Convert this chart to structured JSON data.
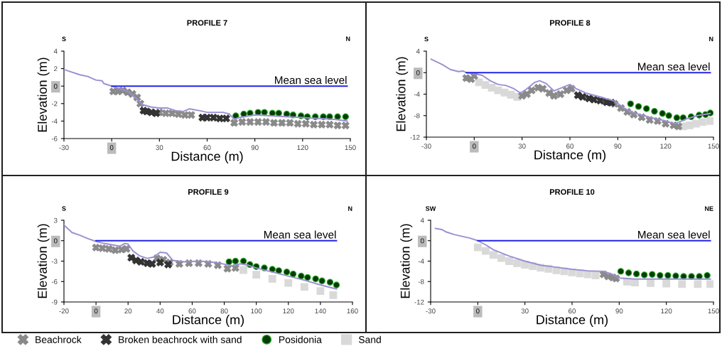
{
  "chart_data": [
    {
      "type": "line",
      "title": "PROFILE 7",
      "xlabel": "Distance (m)",
      "ylabel": "Elevation (m)",
      "xlim": [
        -30,
        150
      ],
      "xticks": [
        -30,
        0,
        30,
        60,
        90,
        120,
        150
      ],
      "ylim": [
        -6,
        4
      ],
      "yticks": [
        -6,
        -4,
        -2,
        0,
        2,
        4
      ],
      "legend": "bottom",
      "annotations": [
        "S",
        "N",
        "Mean sea level"
      ],
      "series": [
        {
          "color": "#9b8fd4",
          "x": [
            -30,
            -20,
            -15,
            -10,
            -6,
            -5,
            0,
            5,
            10,
            13,
            16,
            19,
            25,
            30,
            35,
            40,
            45,
            49,
            55,
            60,
            70,
            74,
            77,
            80,
            90,
            100,
            110,
            120,
            130,
            140,
            148
          ],
          "values": [
            1.9,
            1.3,
            1.1,
            0.7,
            0.6,
            0.3,
            0,
            -0.3,
            -0.6,
            -1.0,
            -1.5,
            -2.1,
            -2.4,
            -2.5,
            -2.5,
            -2.8,
            -2.9,
            -2.6,
            -2.8,
            -3.0,
            -3.0,
            -3.2,
            -3.8,
            -3.6,
            -3.3,
            -3.4,
            -3.5,
            -3.6,
            -3.7,
            -3.8,
            -4.0
          ]
        },
        {
          "color": "#2424e8",
          "x": [
            0,
            148
          ],
          "values": [
            0,
            0
          ]
        },
        {
          "type": "scatter",
          "name": "Beachrock",
          "marker": "cross",
          "color": "#8a8a8a",
          "x": [
            1,
            4,
            7,
            10,
            13,
            16,
            18,
            30,
            34,
            38,
            42,
            46,
            50,
            77,
            82,
            87,
            92,
            97,
            102,
            107,
            112,
            117,
            122,
            127,
            132,
            137,
            142,
            147
          ],
          "values": [
            -0.6,
            -0.6,
            -0.5,
            -0.7,
            -0.9,
            -1.3,
            -2.0,
            -3.0,
            -3.1,
            -3.1,
            -3.2,
            -3.3,
            -3.3,
            -4.2,
            -4.1,
            -4.1,
            -4.1,
            -4.1,
            -4.2,
            -4.2,
            -4.2,
            -4.3,
            -4.3,
            -4.4,
            -4.4,
            -4.4,
            -4.5,
            -4.5
          ]
        },
        {
          "type": "scatter",
          "name": "Broken beachrock with sand",
          "marker": "cross",
          "color": "#333333",
          "x": [
            20,
            22,
            25,
            28,
            57,
            60,
            64,
            68,
            72
          ],
          "values": [
            -2.8,
            -2.9,
            -3.0,
            -3.1,
            -3.6,
            -3.6,
            -3.6,
            -3.7,
            -3.7
          ]
        },
        {
          "type": "scatter",
          "name": "Posidonia",
          "marker": "circle",
          "color": "#0a3a0a",
          "x": [
            78,
            83,
            87,
            92,
            96,
            101,
            105,
            110,
            114,
            119,
            123,
            128,
            133,
            137,
            142,
            147
          ],
          "values": [
            -3.4,
            -3.2,
            -3.1,
            -3.0,
            -3.0,
            -3.1,
            -3.1,
            -3.2,
            -3.3,
            -3.4,
            -3.5,
            -3.5,
            -3.5,
            -3.5,
            -3.5,
            -3.5
          ]
        }
      ]
    },
    {
      "type": "line",
      "title": "PROFILE 8",
      "xlabel": "Distance (m)",
      "ylabel": "Elevation (m)",
      "xlim": [
        -30,
        150
      ],
      "xticks": [
        -30,
        0,
        30,
        60,
        90,
        120,
        150
      ],
      "ylim": [
        -12,
        4
      ],
      "yticks": [
        -12,
        -8,
        -4,
        0,
        4
      ],
      "legend": "bottom",
      "annotations": [
        "S",
        "N",
        "Mean sea level"
      ],
      "series": [
        {
          "type": "scatter",
          "name": "Sand",
          "marker": "square",
          "color": "#d9d9d9",
          "x": [
            3,
            7,
            11,
            15,
            19,
            23,
            27,
            131,
            135,
            139,
            143,
            148
          ],
          "values": [
            -1.8,
            -2.3,
            -2.8,
            -3.3,
            -3.7,
            -4.1,
            -4.5,
            -10.0,
            -9.8,
            -9.5,
            -9.2,
            -9.0
          ]
        },
        {
          "color": "#9b8fd4",
          "x": [
            -27,
            -20,
            -15,
            -10,
            -7,
            -5,
            0,
            5,
            10,
            15,
            20,
            25,
            29,
            33,
            38,
            41,
            45,
            50,
            55,
            60,
            64,
            70,
            80,
            88,
            95,
            100,
            110,
            120,
            126,
            133,
            140,
            148
          ],
          "values": [
            2.5,
            1.5,
            0.6,
            0.2,
            0.3,
            0,
            -0.2,
            -0.5,
            -1.5,
            -2.2,
            -2.4,
            -3.0,
            -3.8,
            -3.0,
            -1.8,
            -1.5,
            -2.0,
            -3.4,
            -2.8,
            -2.2,
            -3.0,
            -3.8,
            -4.6,
            -5.3,
            -6.8,
            -7.5,
            -8.3,
            -9.0,
            -9.5,
            -8.6,
            -8.0,
            -7.6
          ]
        },
        {
          "color": "#2424e8",
          "x": [
            -5,
            148
          ],
          "values": [
            0,
            0
          ]
        },
        {
          "type": "scatter",
          "name": "Beachrock",
          "marker": "cross",
          "color": "#8a8a8a",
          "x": [
            -5,
            -2,
            0,
            30,
            33,
            36,
            40,
            43,
            47,
            50,
            54,
            58,
            61,
            88,
            92,
            96,
            100,
            105,
            110,
            115,
            120,
            125,
            128
          ],
          "values": [
            -1.0,
            -1.2,
            -0.6,
            -4.3,
            -4.0,
            -3.3,
            -2.8,
            -3.0,
            -3.8,
            -4.3,
            -4.0,
            -3.3,
            -3.0,
            -5.8,
            -6.6,
            -7.3,
            -7.8,
            -8.3,
            -8.8,
            -9.0,
            -9.5,
            -9.8,
            -10.0
          ]
        },
        {
          "type": "scatter",
          "name": "Broken beachrock with sand",
          "marker": "cross",
          "color": "#333333",
          "x": [
            65,
            68,
            72,
            75,
            79,
            83,
            86
          ],
          "values": [
            -4.2,
            -4.5,
            -4.8,
            -5.0,
            -5.2,
            -5.5,
            -5.6
          ]
        },
        {
          "type": "scatter",
          "name": "Posidonia",
          "marker": "circle",
          "color": "#0a3a0a",
          "x": [
            98,
            103,
            108,
            113,
            118,
            122,
            127,
            131,
            136,
            141,
            145,
            148
          ],
          "values": [
            -5.8,
            -6.3,
            -6.7,
            -7.2,
            -7.6,
            -8.0,
            -8.4,
            -8.4,
            -8.2,
            -7.9,
            -7.8,
            -7.5
          ]
        }
      ]
    },
    {
      "type": "line",
      "title": "PROFILE 9",
      "xlabel": "Distance (m)",
      "ylabel": "Elevation (m)",
      "xlim": [
        -20,
        160
      ],
      "xticks": [
        -20,
        0,
        20,
        40,
        60,
        80,
        100,
        120,
        140,
        160
      ],
      "ylim": [
        -9,
        3
      ],
      "yticks": [
        -9,
        -6,
        -3,
        0,
        3
      ],
      "legend": "bottom",
      "annotations": [
        "S",
        "N",
        "Mean sea level"
      ],
      "series": [
        {
          "type": "scatter",
          "name": "Sand",
          "marker": "square",
          "color": "#d9d9d9",
          "x": [
            92,
            100,
            110,
            120,
            130,
            140,
            148
          ],
          "values": [
            -4.3,
            -5.0,
            -5.6,
            -6.2,
            -6.8,
            -7.4,
            -8.0
          ]
        },
        {
          "color": "#9b8fd4",
          "x": [
            -20,
            -15,
            -10,
            -5,
            0,
            5,
            10,
            15,
            18,
            20,
            23,
            27,
            32,
            36,
            40,
            44,
            48,
            55,
            65,
            75,
            85,
            90,
            95,
            100,
            110,
            120,
            130,
            140,
            150
          ],
          "values": [
            2.3,
            1.2,
            0.8,
            0.3,
            -0.1,
            -0.4,
            -0.6,
            -0.8,
            -0.4,
            -0.5,
            -1.5,
            -2.2,
            -2.6,
            -2.4,
            -1.7,
            -1.8,
            -2.9,
            -3.1,
            -3.0,
            -3.2,
            -3.7,
            -3.4,
            -3.6,
            -4.0,
            -4.6,
            -5.2,
            -5.8,
            -6.5,
            -7.1
          ]
        },
        {
          "color": "#2424e8",
          "x": [
            0,
            150
          ],
          "values": [
            0,
            0
          ]
        },
        {
          "type": "scatter",
          "name": "Beachrock",
          "marker": "cross",
          "color": "#8a8a8a",
          "x": [
            0,
            4,
            8,
            12,
            16,
            19,
            38,
            42,
            46,
            52,
            58,
            64,
            70,
            76,
            82,
            87
          ],
          "values": [
            -1.0,
            -1.1,
            -1.2,
            -1.4,
            -1.3,
            -1.2,
            -2.6,
            -2.8,
            -3.2,
            -3.4,
            -3.3,
            -3.3,
            -3.4,
            -3.6,
            -4.1,
            -4.0
          ]
        },
        {
          "type": "scatter",
          "name": "Broken beachrock with sand",
          "marker": "cross",
          "color": "#333333",
          "x": [
            22,
            25,
            28,
            32,
            35,
            40,
            45
          ],
          "values": [
            -2.5,
            -2.9,
            -3.1,
            -3.3,
            -3.4,
            -3.2,
            -3.5
          ]
        },
        {
          "type": "scatter",
          "name": "Posidonia",
          "marker": "circle",
          "color": "#0a3a0a",
          "x": [
            83,
            87,
            92,
            96,
            100,
            105,
            110,
            114,
            119,
            123,
            128,
            132,
            137,
            141,
            146,
            150
          ],
          "values": [
            -3.1,
            -3.0,
            -3.0,
            -3.5,
            -3.8,
            -4.0,
            -4.2,
            -4.4,
            -4.6,
            -4.9,
            -5.2,
            -5.4,
            -5.6,
            -5.9,
            -6.1,
            -6.5
          ]
        }
      ]
    },
    {
      "type": "line",
      "title": "PROFILE 10",
      "xlabel": "Distance (m)",
      "ylabel": "Elevation (m)",
      "xlim": [
        -30,
        150
      ],
      "xticks": [
        -30,
        0,
        30,
        60,
        90,
        120,
        150
      ],
      "ylim": [
        -12,
        4
      ],
      "yticks": [
        -12,
        -8,
        -4,
        0,
        4
      ],
      "legend": "bottom",
      "annotations": [
        "SW",
        "NE",
        "Mean sea level"
      ],
      "series": [
        {
          "type": "scatter",
          "name": "Sand",
          "marker": "square",
          "color": "#d9d9d9",
          "x": [
            0,
            5,
            10,
            15,
            20,
            25,
            30,
            35,
            40,
            45,
            50,
            55,
            60,
            65,
            70,
            75,
            95,
            100,
            110,
            120,
            130,
            140,
            148
          ],
          "values": [
            -1.3,
            -2.0,
            -2.8,
            -3.4,
            -4.0,
            -4.4,
            -4.7,
            -5.0,
            -5.3,
            -5.5,
            -5.8,
            -6.0,
            -6.2,
            -6.4,
            -6.6,
            -6.8,
            -8.0,
            -8.2,
            -8.3,
            -8.4,
            -8.5,
            -8.5,
            -8.5
          ]
        },
        {
          "color": "#9b8fd4",
          "x": [
            -27,
            -23,
            -20,
            -15,
            -5,
            0,
            5,
            10,
            20,
            30,
            40,
            50,
            60,
            70,
            80,
            85,
            90,
            100,
            120,
            148
          ],
          "values": [
            2.4,
            2.2,
            1.7,
            1.2,
            0.5,
            0,
            -0.8,
            -1.8,
            -3.0,
            -4.0,
            -4.8,
            -5.2,
            -5.6,
            -5.9,
            -6.0,
            -6.5,
            -7.3,
            -7.5,
            -7.5,
            -7.5
          ]
        },
        {
          "color": "#2424e8",
          "x": [
            0,
            148
          ],
          "values": [
            0,
            0
          ]
        },
        {
          "type": "scatter",
          "name": "Beachrock",
          "marker": "cross",
          "color": "#8a8a8a",
          "x": [
            80,
            83,
            86,
            88
          ],
          "values": [
            -6.6,
            -7.0,
            -7.2,
            -7.4
          ]
        },
        {
          "type": "scatter",
          "name": "Posidonia",
          "marker": "circle",
          "color": "#0a3a0a",
          "x": [
            91,
            96,
            101,
            106,
            111,
            116,
            121,
            126,
            131,
            136,
            141,
            146
          ],
          "values": [
            -6.0,
            -6.3,
            -6.5,
            -6.7,
            -6.6,
            -6.8,
            -6.8,
            -6.9,
            -7.0,
            -7.0,
            -7.0,
            -6.8
          ]
        }
      ]
    }
  ]
}
